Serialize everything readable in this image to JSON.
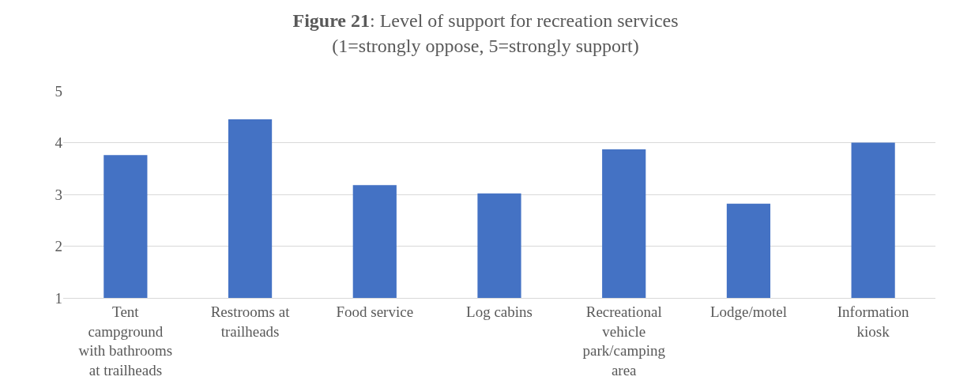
{
  "chart_data": {
    "type": "bar",
    "title": "Figure 21: Level of support for recreation services",
    "subtitle": "(1=strongly oppose, 5=strongly support)",
    "categories": [
      "Tent campground with bathrooms at trailheads",
      "Restrooms at trailheads",
      "Food service",
      "Log cabins",
      "Recreational vehicle park/camping area",
      "Lodge/motel",
      "Information kiosk"
    ],
    "values": [
      3.76,
      4.45,
      3.18,
      3.02,
      3.87,
      2.82,
      4.0
    ],
    "color": "#4472c4",
    "ylim": [
      1,
      5
    ],
    "yticks": [
      1,
      2,
      3,
      4,
      5
    ],
    "grid": "y",
    "legend": false
  }
}
